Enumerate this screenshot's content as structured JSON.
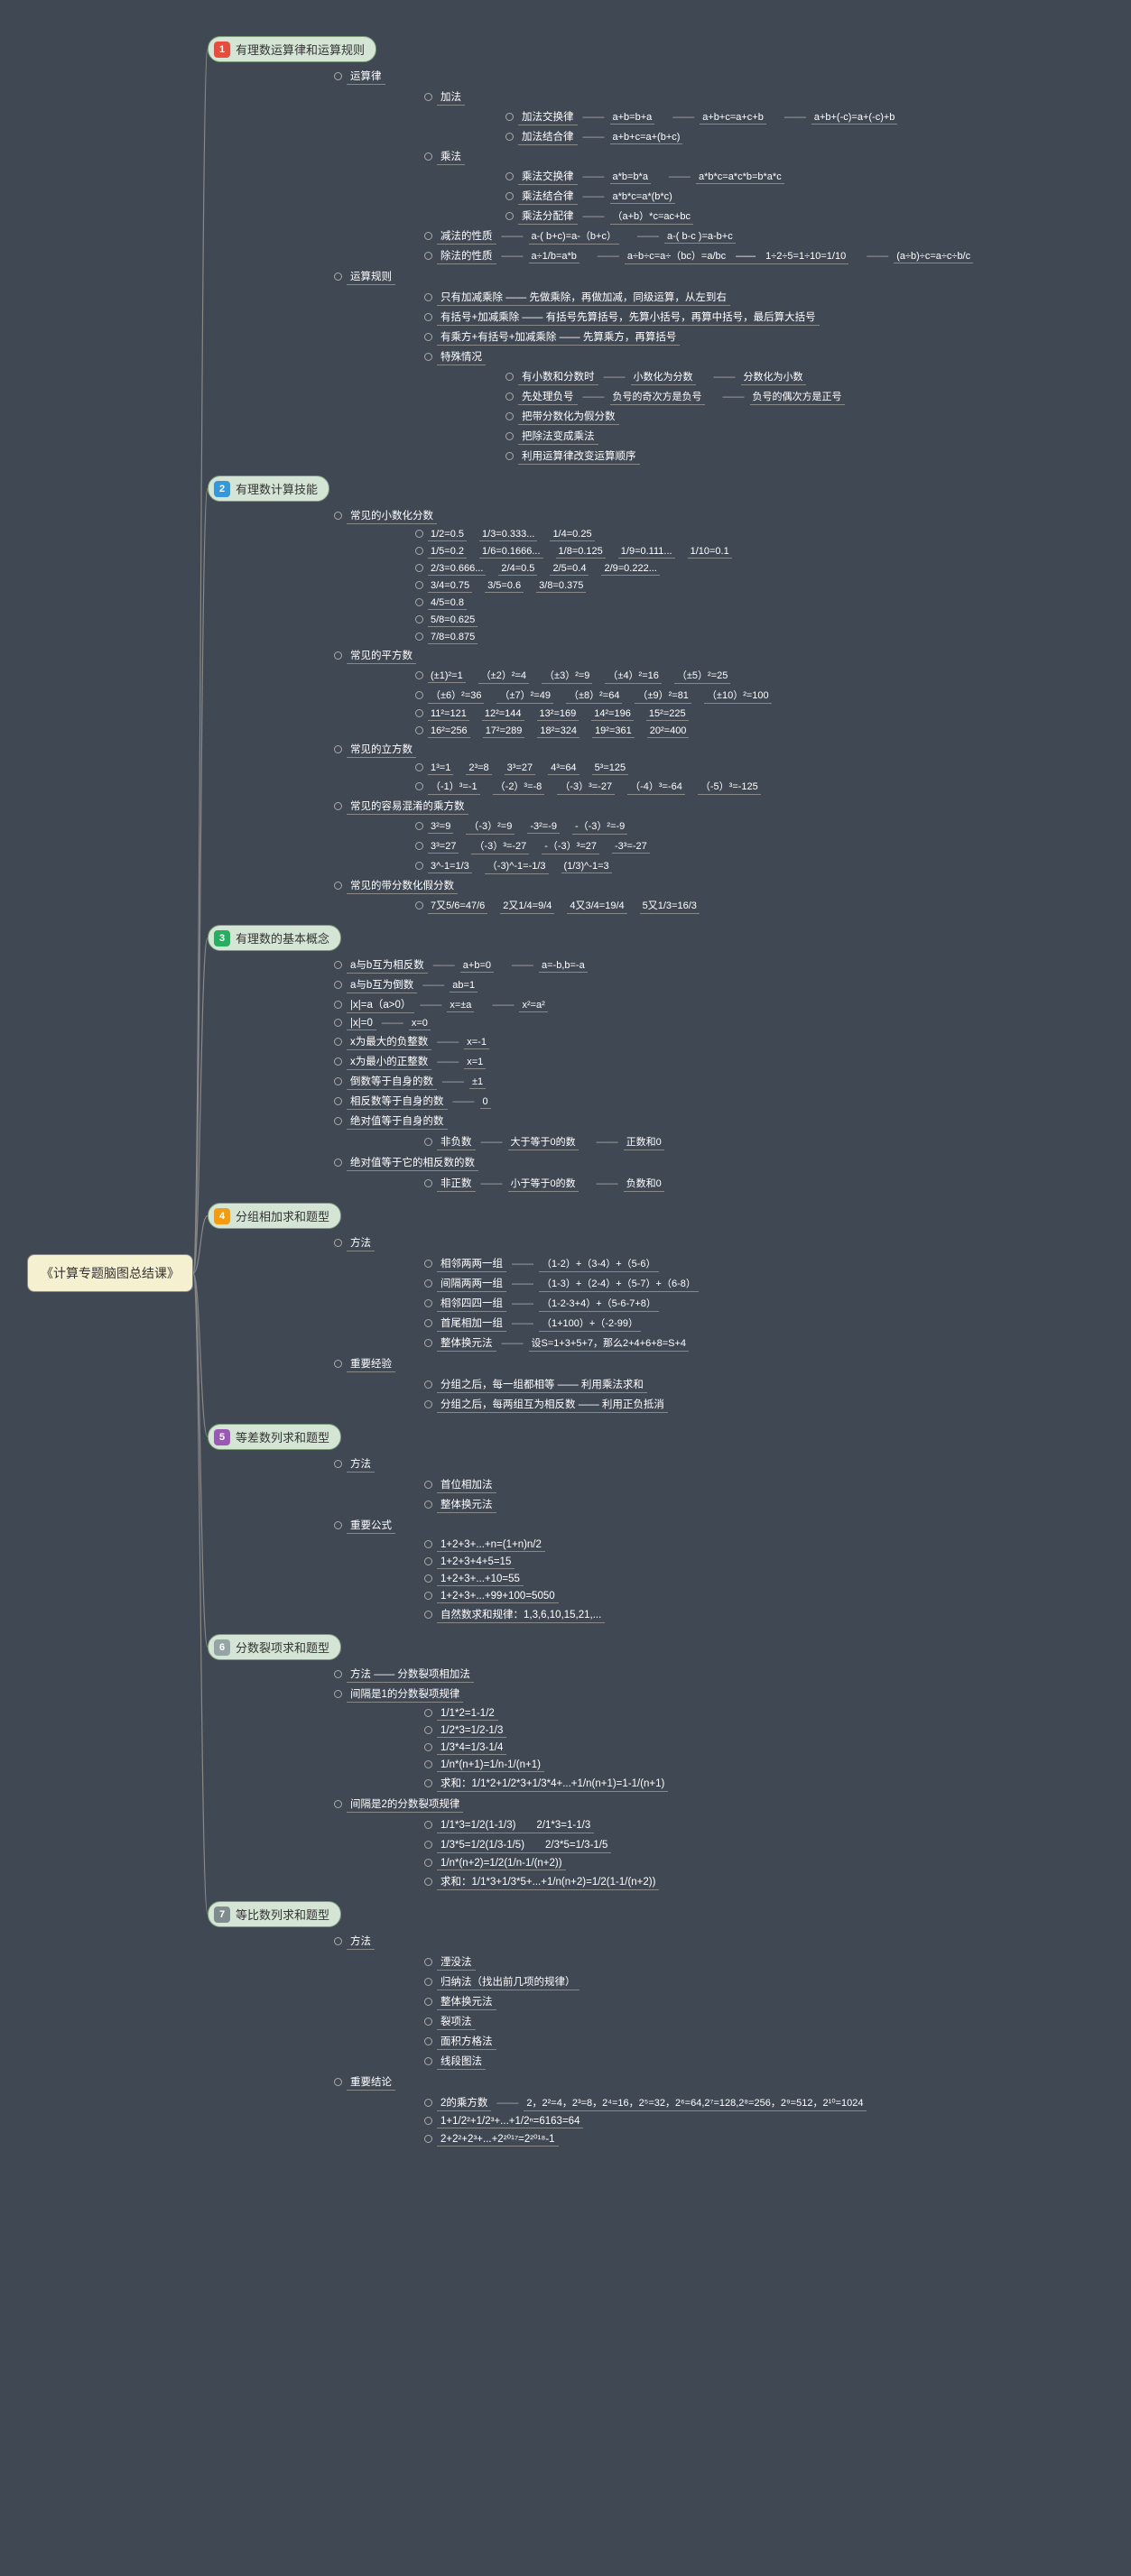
{
  "root_title": "《计算专题脑图总结课》",
  "colors": {
    "bg": "#404854",
    "root_bg": "#f5f0d0",
    "pill_bg": "#d5e5d5",
    "line": "#888888"
  },
  "num_colors": [
    "#e74c3c",
    "#3498db",
    "#27ae60",
    "#f39c12",
    "#9b59b6",
    "#95a5a6",
    "#7f8c8d"
  ],
  "branches": [
    {
      "label": "有理数运算律和运算规则",
      "children": [
        {
          "t": "运算律",
          "children": [
            {
              "t": "加法",
              "children": [
                {
                  "t": "加法交换律",
                  "leaves": [
                    "a+b=b+a",
                    "a+b+c=a+c+b",
                    "a+b+(-c)=a+(-c)+b"
                  ]
                },
                {
                  "t": "加法结合律",
                  "leaves": [
                    "a+b+c=a+(b+c)"
                  ]
                }
              ]
            },
            {
              "t": "乘法",
              "children": [
                {
                  "t": "乘法交换律",
                  "leaves": [
                    "a*b=b*a",
                    "a*b*c=a*c*b=b*a*c"
                  ]
                },
                {
                  "t": "乘法结合律",
                  "leaves": [
                    "a*b*c=a*(b*c)"
                  ]
                },
                {
                  "t": "乘法分配律",
                  "leaves": [
                    "（a+b）*c=ac+bc"
                  ]
                }
              ]
            },
            {
              "t": "减法的性质",
              "leaves": [
                "a-( b+c)=a-（b+c）",
                "a-( b-c )=a-b+c"
              ]
            },
            {
              "t": "除法的性质",
              "leaves": [
                "a÷1/b=a*b",
                "a÷b÷c=a÷（bc）=a/bc　——　1÷2÷5=1÷10=1/10",
                "(a÷b)÷c=a÷c÷b/c"
              ]
            }
          ]
        },
        {
          "t": "运算规则",
          "children": [
            {
              "t": "只有加减乘除 —— 先做乘除，再做加减，同级运算，从左到右"
            },
            {
              "t": "有括号+加减乘除 —— 有括号先算括号，先算小括号，再算中括号，最后算大括号"
            },
            {
              "t": "有乘方+有括号+加减乘除 —— 先算乘方，再算括号"
            },
            {
              "t": "特殊情况",
              "children": [
                {
                  "t": "有小数和分数时",
                  "leaves": [
                    "小数化为分数",
                    "分数化为小数"
                  ]
                },
                {
                  "t": "先处理负号",
                  "leaves": [
                    "负号的奇次方是负号",
                    "负号的偶次方是正号"
                  ]
                },
                {
                  "t": "把带分数化为假分数"
                },
                {
                  "t": "把除法变成乘法"
                },
                {
                  "t": "利用运算律改变运算顺序"
                }
              ]
            }
          ]
        }
      ]
    },
    {
      "label": "有理数计算技能",
      "children": [
        {
          "t": "常见的小数化分数",
          "rows": [
            [
              "1/2=0.5",
              "1/3=0.333...",
              "1/4=0.25"
            ],
            [
              "1/5=0.2",
              "1/6=0.1666...",
              "1/8=0.125",
              "1/9=0.111...",
              "1/10=0.1"
            ],
            [
              "2/3=0.666...",
              "2/4=0.5",
              "2/5=0.4",
              "2/9=0.222..."
            ],
            [
              "3/4=0.75",
              "3/5=0.6",
              "3/8=0.375"
            ],
            [
              "4/5=0.8"
            ],
            [
              "5/8=0.625"
            ],
            [
              "7/8=0.875"
            ]
          ]
        },
        {
          "t": "常见的平方数",
          "rows": [
            [
              "(±1)²=1",
              "（±2）²=4",
              "（±3）²=9",
              "（±4）²=16",
              "（±5）²=25"
            ],
            [
              "（±6）²=36",
              "（±7）²=49",
              "（±8）²=64",
              "（±9）²=81",
              "（±10）²=100"
            ],
            [
              "11²=121",
              "12²=144",
              "13²=169",
              "14²=196",
              "15²=225"
            ],
            [
              "16²=256",
              "17²=289",
              "18²=324",
              "19²=361",
              "20²=400"
            ]
          ]
        },
        {
          "t": "常见的立方数",
          "rows": [
            [
              "1³=1",
              "2³=8",
              "3³=27",
              "4³=64",
              "5³=125"
            ],
            [
              "（-1）³=-1",
              "（-2）³=-8",
              "（-3）³=-27",
              "（-4）³=-64",
              "（-5）³=-125"
            ]
          ]
        },
        {
          "t": "常见的容易混淆的乘方数",
          "rows": [
            [
              "3²=9",
              "（-3）²=9",
              "-3²=-9",
              "-（-3）²=-9"
            ],
            [
              "3³=27",
              "（-3）³=-27",
              "-（-3）³=27",
              "-3³=-27"
            ],
            [
              "3^-1=1/3",
              "（-3)^-1=-1/3",
              "(1/3)^-1=3"
            ]
          ]
        },
        {
          "t": "常见的带分数化假分数",
          "rows": [
            [
              "7又5/6=47/6",
              "2又1/4=9/4",
              "4又3/4=19/4",
              "5又1/3=16/3"
            ]
          ]
        }
      ]
    },
    {
      "label": "有理数的基本概念",
      "children": [
        {
          "t": "a与b互为相反数",
          "leaves": [
            "a+b=0",
            "a=-b,b=-a"
          ]
        },
        {
          "t": "a与b互为倒数",
          "leaves": [
            "ab=1"
          ]
        },
        {
          "t": "|x|=a（a>0）",
          "leaves": [
            "x=±a",
            "x²=a²"
          ]
        },
        {
          "t": "|x|=0",
          "leaves": [
            "x=0"
          ]
        },
        {
          "t": "x为最大的负整数",
          "leaves": [
            "x=-1"
          ]
        },
        {
          "t": "x为最小的正整数",
          "leaves": [
            "x=1"
          ]
        },
        {
          "t": "倒数等于自身的数",
          "leaves": [
            "±1"
          ]
        },
        {
          "t": "相反数等于自身的数",
          "leaves": [
            "0"
          ]
        },
        {
          "t": "绝对值等于自身的数",
          "children": [
            {
              "t": "非负数",
              "leaves": [
                "大于等于0的数",
                "正数和0"
              ]
            }
          ]
        },
        {
          "t": "绝对值等于它的相反数的数",
          "children": [
            {
              "t": "非正数",
              "leaves": [
                "小于等于0的数",
                "负数和0"
              ]
            }
          ]
        }
      ]
    },
    {
      "label": "分组相加求和题型",
      "children": [
        {
          "t": "方法",
          "children": [
            {
              "t": "相邻两两一组",
              "leaves": [
                "（1-2）+（3-4）+（5-6）"
              ]
            },
            {
              "t": "间隔两两一组",
              "leaves": [
                "（1-3）+（2-4）+（5-7）+（6-8）"
              ]
            },
            {
              "t": "相邻四四一组",
              "leaves": [
                "（1-2-3+4）+（5-6-7+8）"
              ]
            },
            {
              "t": "首尾相加一组",
              "leaves": [
                "（1+100）+（-2-99）"
              ]
            },
            {
              "t": "整体换元法",
              "leaves": [
                "设S=1+3+5+7，那么2+4+6+8=S+4"
              ]
            }
          ]
        },
        {
          "t": "重要经验",
          "children": [
            {
              "t": "分组之后，每一组都相等 —— 利用乘法求和"
            },
            {
              "t": "分组之后，每两组互为相反数 —— 利用正负抵消"
            }
          ]
        }
      ]
    },
    {
      "label": "等差数列求和题型",
      "children": [
        {
          "t": "方法",
          "children": [
            {
              "t": "首位相加法"
            },
            {
              "t": "整体换元法"
            }
          ]
        },
        {
          "t": "重要公式",
          "children": [
            {
              "t": "1+2+3+...+n=(1+n)n/2"
            },
            {
              "t": "1+2+3+4+5=15"
            },
            {
              "t": "1+2+3+...+10=55"
            },
            {
              "t": "1+2+3+...+99+100=5050"
            },
            {
              "t": "自然数求和规律：1,3,6,10,15,21,..."
            }
          ]
        }
      ]
    },
    {
      "label": "分数裂项求和题型",
      "children": [
        {
          "t": "方法 —— 分数裂项相加法"
        },
        {
          "t": "间隔是1的分数裂项规律",
          "children": [
            {
              "t": "1/1*2=1-1/2"
            },
            {
              "t": "1/2*3=1/2-1/3"
            },
            {
              "t": "1/3*4=1/3-1/4"
            },
            {
              "t": "1/n*(n+1)=1/n-1/(n+1)"
            },
            {
              "t": "求和：1/1*2+1/2*3+1/3*4+...+1/n(n+1)=1-1/(n+1)"
            }
          ]
        },
        {
          "t": "间隔是2的分数裂项规律",
          "children": [
            {
              "t": "1/1*3=1/2(1-1/3)　　2/1*3=1-1/3"
            },
            {
              "t": "1/3*5=1/2(1/3-1/5)　　2/3*5=1/3-1/5"
            },
            {
              "t": "1/n*(n+2)=1/2(1/n-1/(n+2))"
            },
            {
              "t": "求和：1/1*3+1/3*5+...+1/n(n+2)=1/2(1-1/(n+2))"
            }
          ]
        }
      ]
    },
    {
      "label": "等比数列求和题型",
      "children": [
        {
          "t": "方法",
          "children": [
            {
              "t": "湮没法"
            },
            {
              "t": "归纳法（找出前几项的规律）"
            },
            {
              "t": "整体换元法"
            },
            {
              "t": "裂项法"
            },
            {
              "t": "面积方格法"
            },
            {
              "t": "线段图法"
            }
          ]
        },
        {
          "t": "重要结论",
          "children": [
            {
              "t": "2的乘方数",
              "leaves": [
                "2，2²=4，2³=8，2⁴=16，2⁵=32，2⁶=64,2⁷=128,2⁸=256，2⁹=512，2¹⁰=1024"
              ]
            },
            {
              "t": "1+1/2²+1/2³+...+1/2ⁿ=6163=64"
            },
            {
              "t": "2+2²+2³+...+2²⁰¹⁷=2²⁰¹⁸-1"
            }
          ]
        }
      ]
    }
  ]
}
